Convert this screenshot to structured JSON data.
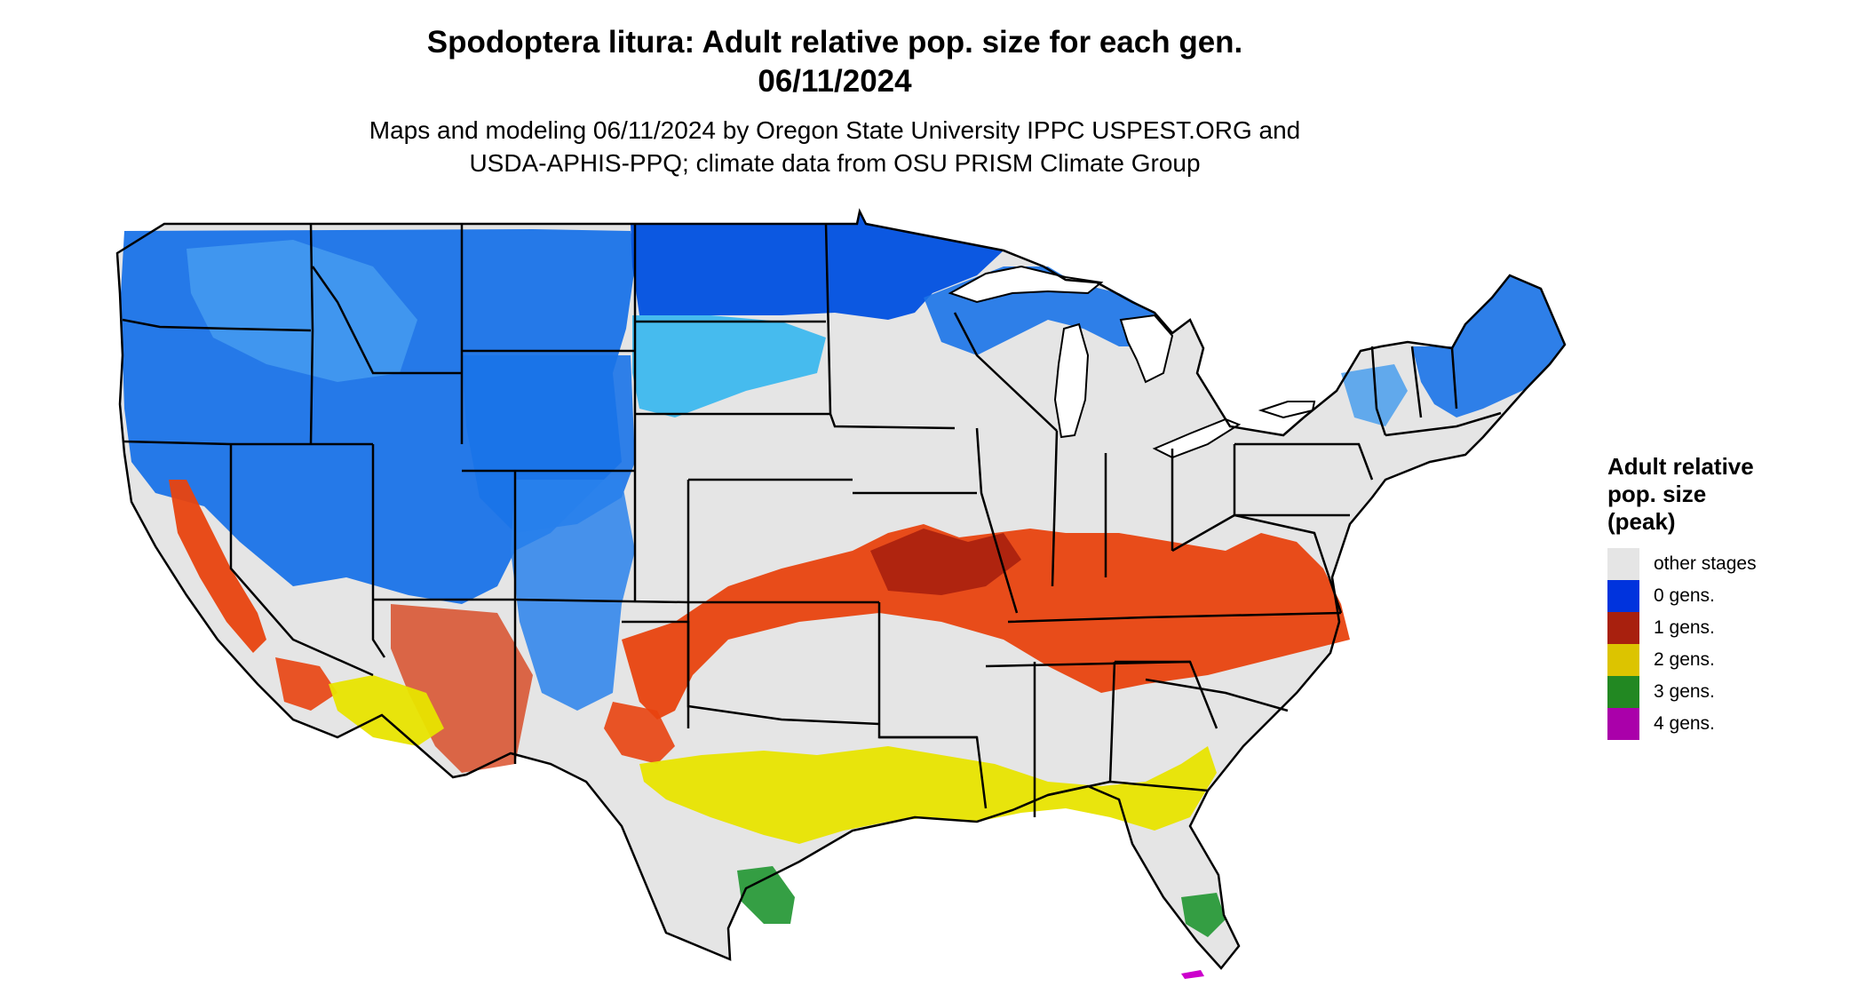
{
  "title": {
    "line1": "Spodoptera litura: Adult relative pop. size for each gen.",
    "line2": "06/11/2024"
  },
  "subtitle": {
    "line1": "Maps and modeling 06/11/2024 by Oregon State University IPPC USPEST.ORG and",
    "line2": "USDA-APHIS-PPQ; climate data from OSU PRISM Climate Group"
  },
  "legend": {
    "title_lines": [
      "Adult relative",
      "pop. size",
      "(peak)"
    ],
    "items": [
      {
        "label": "other stages",
        "color": "#e5e5e5"
      },
      {
        "label": "0 gens.",
        "color": "#0033dd"
      },
      {
        "label": "1 gens.",
        "color": "#a8200e"
      },
      {
        "label": "2 gens.",
        "color": "#dcc400"
      },
      {
        "label": "3 gens.",
        "color": "#228822"
      },
      {
        "label": "4 gens.",
        "color": "#aa00aa"
      }
    ]
  },
  "map": {
    "region": "Contiguous United States",
    "colors": {
      "background_land": "#e5e5e5",
      "gen0_dark": "#0033dd",
      "gen0_mid": "#1a73e8",
      "gen0_light": "#2ab4f0",
      "gen1_dark": "#a8200e",
      "gen1_light": "#e8430f",
      "gen2": "#e8e400",
      "gen3": "#2a9a3a",
      "gen4": "#cc00cc",
      "borders": "#000000"
    }
  }
}
